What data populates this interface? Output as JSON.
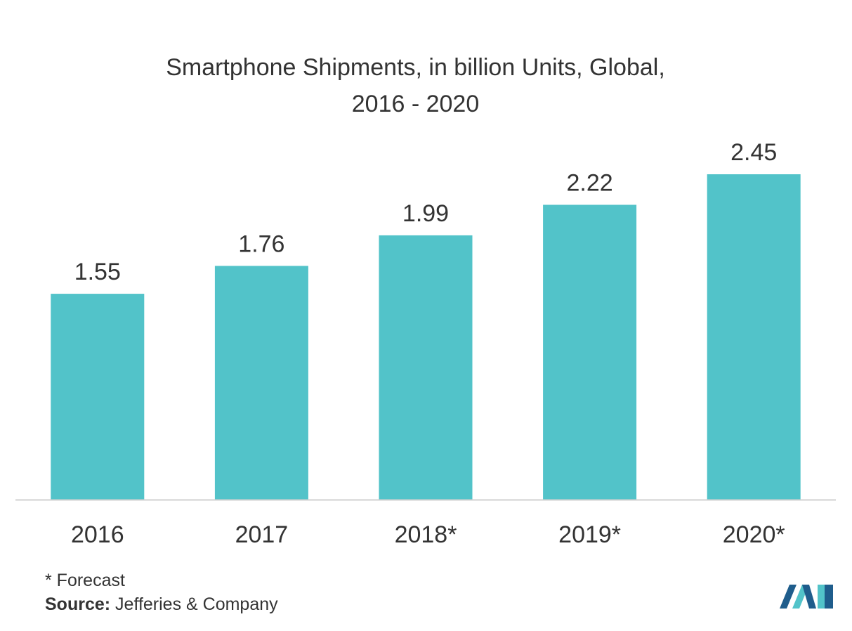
{
  "chart_data": {
    "type": "bar",
    "title_lines": [
      "Smartphone Shipments, in billion Units, Global,",
      "2016 - 2020"
    ],
    "categories": [
      "2016",
      "2017",
      "2018*",
      "2019*",
      "2020*"
    ],
    "values": [
      1.55,
      1.76,
      1.99,
      2.22,
      2.45
    ],
    "data_labels": [
      "1.55",
      "1.76",
      "1.99",
      "2.22",
      "2.45"
    ],
    "xlabel": "",
    "ylabel": "",
    "ylim": [
      0,
      2.45
    ],
    "grid": false,
    "legend": "none",
    "bar_color": "#52c3c9",
    "axis_color": "#d0d0d0"
  },
  "footnote": "* Forecast",
  "source_label": "Source:",
  "source_text": " Jefferies & Company",
  "logo": {
    "icon": "company-logo-icon",
    "colors": [
      "#1f5d8c",
      "#52c3c9"
    ]
  }
}
